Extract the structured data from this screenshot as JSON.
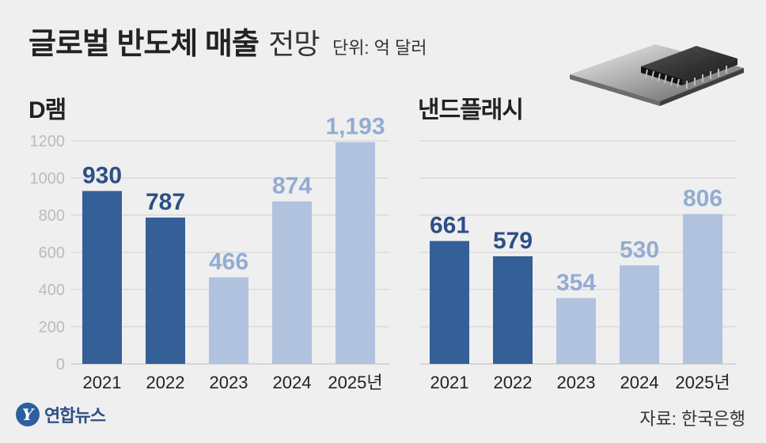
{
  "title": {
    "main": "글로벌 반도체 매출",
    "sub": "전망",
    "unit": "단위: 억 달러"
  },
  "source": "자료: 한국은행",
  "logo": {
    "text": "연합뉴스",
    "mark": "Y"
  },
  "colors": {
    "actual": "#345f97",
    "forecast": "#b0c2de",
    "actual_label": "#2c4f86",
    "forecast_label": "#93acd2",
    "grid": "#d0d0d0",
    "axis_text": "#bbbbbb"
  },
  "chart_data": [
    {
      "type": "bar",
      "title": "D램",
      "categories": [
        "2021",
        "2022",
        "2023",
        "2024",
        "2025년"
      ],
      "values": [
        930,
        787,
        466,
        874,
        1193
      ],
      "value_labels": [
        "930",
        "787",
        "466",
        "874",
        "1,193"
      ],
      "bar_colors": [
        "#345f97",
        "#345f97",
        "#b0c2de",
        "#b0c2de",
        "#b0c2de"
      ],
      "yticks": [
        "0",
        "200",
        "400",
        "600",
        "800",
        "1000",
        "1200"
      ],
      "ylim": [
        0,
        1200
      ],
      "grid": true
    },
    {
      "type": "bar",
      "title": "낸드플래시",
      "categories": [
        "2021",
        "2022",
        "2023",
        "2024",
        "2025년"
      ],
      "values": [
        661,
        579,
        354,
        530,
        806
      ],
      "value_labels": [
        "661",
        "579",
        "354",
        "530",
        "806"
      ],
      "bar_colors": [
        "#345f97",
        "#345f97",
        "#b0c2de",
        "#b0c2de",
        "#b0c2de"
      ],
      "ylim": [
        0,
        1200
      ],
      "grid": true
    }
  ]
}
